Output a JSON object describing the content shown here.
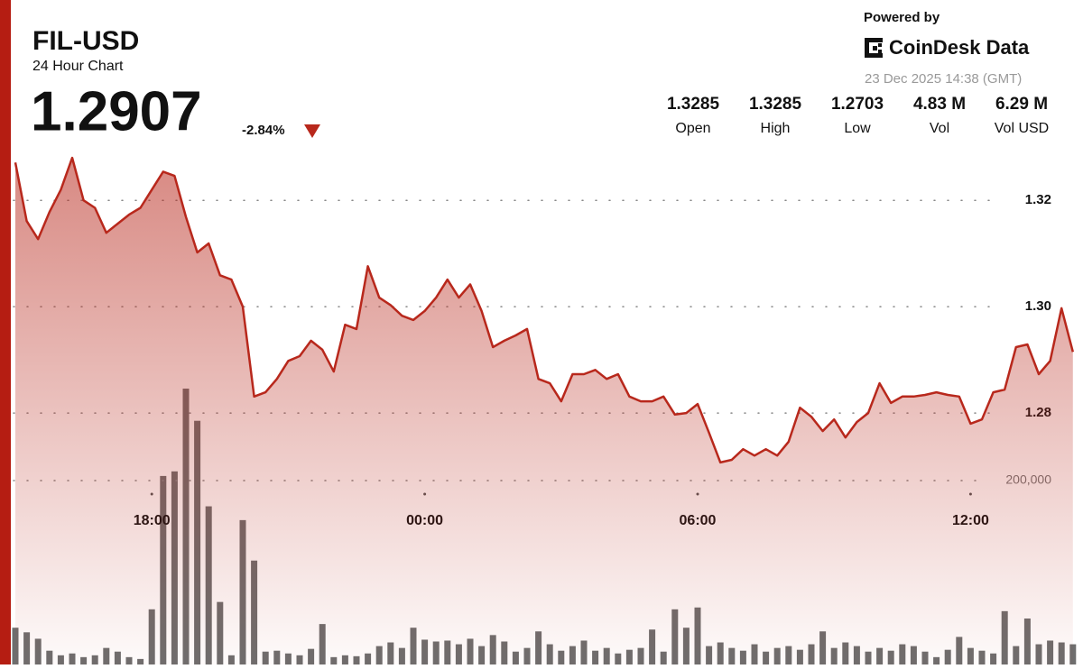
{
  "header": {
    "title": "FIL-USD",
    "subtitle": "24 Hour Chart",
    "price": "1.2907",
    "change": "-2.84%"
  },
  "branding": {
    "powered_by": "Powered by",
    "logo": "CoinDesk Data",
    "timestamp": "23 Dec 2025 14:38 (GMT)"
  },
  "stats": [
    {
      "value": "1.3285",
      "label": "Open"
    },
    {
      "value": "1.3285",
      "label": "High"
    },
    {
      "value": "1.2703",
      "label": "Low"
    },
    {
      "value": "4.83 M",
      "label": "Vol"
    },
    {
      "value": "6.29 M",
      "label": "Vol USD"
    }
  ],
  "chart_data": {
    "type": "line",
    "color": "#b8281c",
    "volume_color": "#555555",
    "categories": [
      null,
      null,
      null,
      null,
      null,
      null,
      null,
      null,
      null,
      null,
      null,
      null,
      "18:00",
      null,
      null,
      null,
      null,
      null,
      null,
      null,
      null,
      null,
      null,
      null,
      null,
      null,
      null,
      null,
      null,
      null,
      null,
      null,
      null,
      null,
      null,
      null,
      "00:00",
      null,
      null,
      null,
      null,
      null,
      null,
      null,
      null,
      null,
      null,
      null,
      null,
      null,
      null,
      null,
      null,
      null,
      null,
      null,
      null,
      null,
      null,
      null,
      "06:00",
      null,
      null,
      null,
      null,
      null,
      null,
      null,
      null,
      null,
      null,
      null,
      null,
      null,
      null,
      null,
      null,
      null,
      null,
      null,
      null,
      null,
      null,
      null,
      "12:00",
      null,
      null,
      null,
      null,
      null,
      null,
      null,
      null,
      null
    ],
    "values": [
      1.3271,
      1.3161,
      1.3127,
      1.3178,
      1.322,
      1.328,
      1.32,
      1.3186,
      1.3139,
      1.3156,
      1.3173,
      1.3186,
      1.322,
      1.3254,
      1.3246,
      1.3169,
      1.3102,
      1.3119,
      1.3059,
      1.3051,
      1.3,
      1.2831,
      1.2839,
      1.2864,
      1.2898,
      1.2907,
      1.2936,
      1.2919,
      1.2878,
      1.2966,
      1.2958,
      1.3076,
      1.3017,
      1.3003,
      1.2983,
      1.2975,
      1.2992,
      1.3017,
      1.3051,
      1.3017,
      1.3042,
      1.2992,
      1.2924,
      1.2936,
      1.2946,
      1.2958,
      1.2864,
      1.2856,
      1.2822,
      1.2873,
      1.2873,
      1.2881,
      1.2864,
      1.2873,
      1.2831,
      1.2822,
      1.2822,
      1.2831,
      1.2797,
      1.28,
      1.2817,
      1.2763,
      1.2707,
      1.2712,
      1.2732,
      1.272,
      1.2732,
      1.272,
      1.2746,
      1.281,
      1.2793,
      1.2766,
      1.2788,
      1.2754,
      1.2783,
      1.28,
      1.2856,
      1.2819,
      1.2831,
      1.2831,
      1.2834,
      1.2839,
      1.2834,
      1.2831,
      1.278,
      1.2788,
      1.2839,
      1.2844,
      1.2924,
      1.2929,
      1.2873,
      1.2898,
      1.2997,
      1.2915
    ],
    "volumes": [
      40000,
      35000,
      28000,
      15000,
      10000,
      12000,
      8000,
      10000,
      18000,
      14000,
      8000,
      6000,
      60000,
      205000,
      210000,
      300000,
      265000,
      172000,
      68000,
      10000,
      157000,
      113000,
      14000,
      15000,
      12000,
      10000,
      17000,
      44000,
      8000,
      10000,
      9000,
      12000,
      20000,
      24000,
      18000,
      40000,
      27000,
      25000,
      26000,
      22000,
      28000,
      20000,
      32000,
      25000,
      14000,
      18000,
      36000,
      22000,
      15000,
      20000,
      26000,
      15000,
      18000,
      12000,
      16000,
      18000,
      38000,
      14000,
      60000,
      40000,
      62000,
      20000,
      24000,
      18000,
      15000,
      22000,
      14000,
      18000,
      20000,
      16000,
      22000,
      36000,
      18000,
      24000,
      20000,
      14000,
      18000,
      15000,
      22000,
      20000,
      14000,
      8000,
      16000,
      30000,
      18000,
      15000,
      12000,
      58000,
      20000,
      50000,
      22000,
      26000,
      24000,
      22000
    ],
    "ylim": [
      1.2327,
      1.3297
    ],
    "yticks": [
      1.28,
      {
        "value": 1.3,
        "label": "1.30"
      },
      1.32
    ],
    "y2lim": [
      0,
      560800
    ],
    "y2ticks": [
      {
        "value": 200000,
        "label": "200,000"
      }
    ],
    "grid": true
  }
}
